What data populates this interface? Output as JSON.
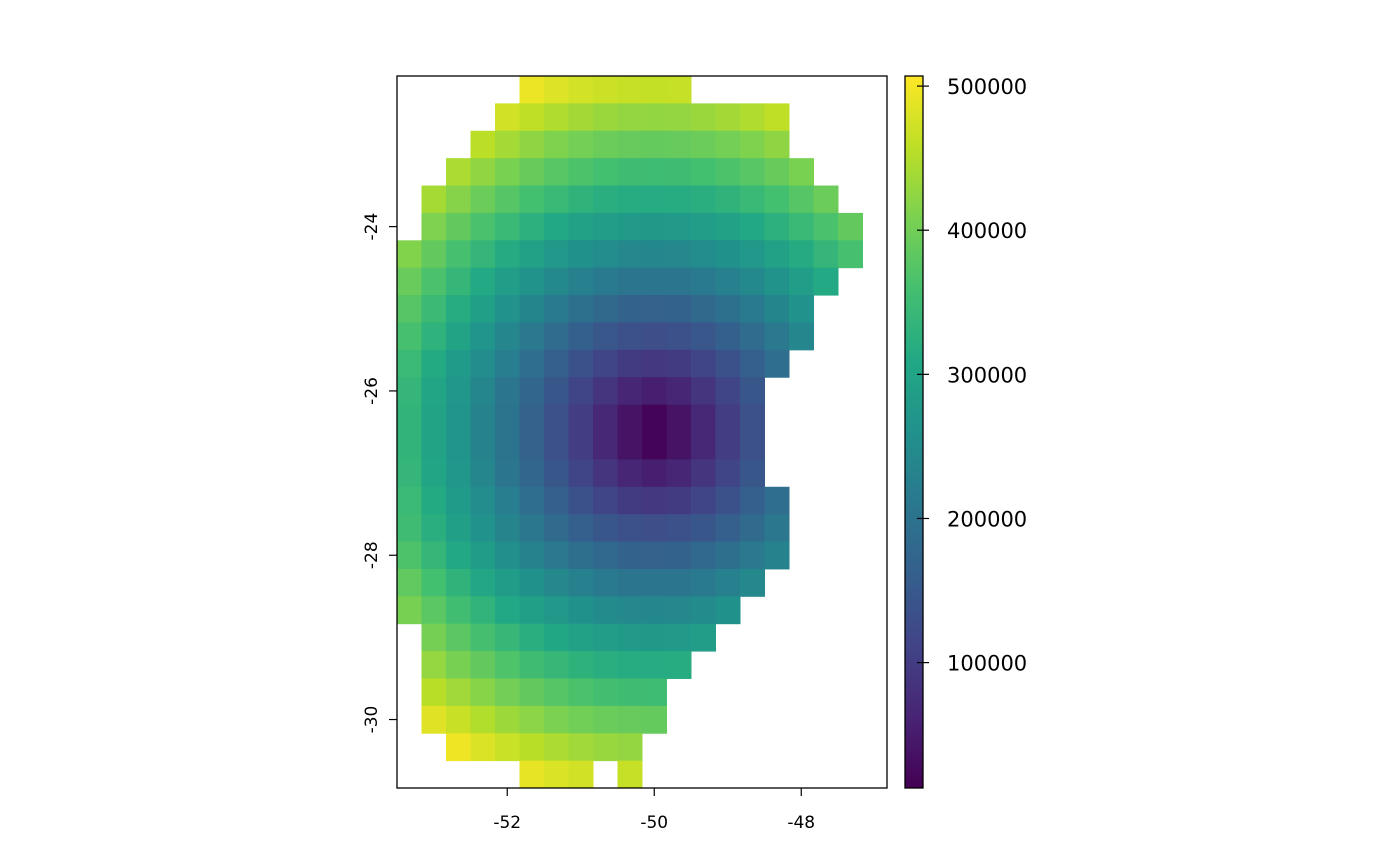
{
  "chart_data": {
    "type": "raster",
    "xlim": [
      -53.5,
      -46.8333
    ],
    "ylim": [
      -30.8333,
      -22.1667
    ],
    "xticks": [
      -52,
      -50,
      -48
    ],
    "yticks": [
      -30,
      -28,
      -26,
      -24
    ],
    "zlim": [
      13000,
      507000
    ],
    "zticks": [
      100000,
      200000,
      300000,
      400000,
      500000
    ],
    "colors": [
      "#440154",
      "#482475",
      "#414487",
      "#355f8d",
      "#2a788e",
      "#21918c",
      "#22a884",
      "#44bf70",
      "#7ad151",
      "#bddf26",
      "#fde725"
    ],
    "z": [
      [
        null,
        null,
        null,
        null,
        null,
        493000,
        482000,
        474000,
        468000,
        464000,
        463000,
        464000,
        null,
        null,
        null,
        null,
        null,
        null,
        null,
        null
      ],
      [
        null,
        null,
        null,
        null,
        472000,
        459000,
        447000,
        438000,
        431000,
        427000,
        426000,
        427000,
        431000,
        438000,
        447000,
        459000,
        null,
        null,
        null,
        null
      ],
      [
        null,
        null,
        null,
        456000,
        439000,
        424000,
        412000,
        402000,
        395000,
        390000,
        389000,
        390000,
        395000,
        402000,
        412000,
        424000,
        null,
        null,
        null,
        null
      ],
      [
        null,
        null,
        445000,
        425000,
        407000,
        391000,
        377000,
        366000,
        358000,
        353000,
        352000,
        353000,
        358000,
        366000,
        377000,
        391000,
        407000,
        null,
        null,
        null
      ],
      [
        null,
        440000,
        417000,
        395000,
        375000,
        358000,
        343000,
        331000,
        322000,
        316000,
        315000,
        316000,
        322000,
        331000,
        343000,
        358000,
        375000,
        395000,
        null,
        null
      ],
      [
        null,
        411000,
        387000,
        364000,
        343000,
        325000,
        309000,
        295000,
        286000,
        280000,
        278000,
        280000,
        286000,
        295000,
        309000,
        325000,
        343000,
        364000,
        387000,
        null
      ],
      [
        414000,
        387000,
        361000,
        337000,
        314000,
        294000,
        276000,
        261000,
        250000,
        243000,
        241000,
        243000,
        250000,
        261000,
        276000,
        294000,
        314000,
        337000,
        361000,
        null
      ],
      [
        393000,
        365000,
        338000,
        311000,
        287000,
        264000,
        244000,
        227000,
        214000,
        206000,
        204000,
        206000,
        214000,
        227000,
        244000,
        264000,
        287000,
        311000,
        null,
        null
      ],
      [
        376000,
        346000,
        317000,
        289000,
        262000,
        237000,
        214000,
        195000,
        180000,
        170000,
        167000,
        170000,
        180000,
        195000,
        214000,
        237000,
        262000,
        null,
        null,
        null
      ],
      [
        361000,
        330000,
        299000,
        269000,
        240000,
        212000,
        187000,
        164000,
        146000,
        134000,
        130000,
        134000,
        146000,
        164000,
        187000,
        212000,
        240000,
        null,
        null,
        null
      ],
      [
        345000,
        313000,
        281000,
        250000,
        220000,
        190000,
        162000,
        136000,
        114000,
        98000,
        93000,
        98000,
        114000,
        136000,
        162000,
        190000,
        null,
        null,
        null,
        null
      ],
      [
        337000,
        304000,
        271000,
        239000,
        207000,
        175000,
        144000,
        114000,
        87000,
        65000,
        56000,
        65000,
        87000,
        114000,
        144000,
        null,
        null,
        null,
        null,
        null
      ],
      [
        333000,
        299000,
        266000,
        233000,
        200000,
        167000,
        134000,
        101000,
        69000,
        38000,
        19000,
        38000,
        69000,
        101000,
        134000,
        null,
        null,
        null,
        null,
        null
      ],
      [
        333000,
        299000,
        266000,
        233000,
        200000,
        167000,
        134000,
        101000,
        69000,
        38000,
        19000,
        38000,
        69000,
        101000,
        134000,
        null,
        null,
        null,
        null,
        null
      ],
      [
        337000,
        304000,
        271000,
        239000,
        207000,
        175000,
        144000,
        114000,
        87000,
        65000,
        56000,
        65000,
        87000,
        114000,
        144000,
        null,
        null,
        null,
        null,
        null
      ],
      [
        345000,
        313000,
        281000,
        250000,
        220000,
        190000,
        162000,
        136000,
        114000,
        98000,
        93000,
        98000,
        114000,
        136000,
        162000,
        190000,
        null,
        null,
        null,
        null
      ],
      [
        351000,
        321000,
        292000,
        263000,
        235000,
        208000,
        184000,
        162000,
        145000,
        134000,
        130000,
        134000,
        145000,
        162000,
        184000,
        208000,
        null,
        null,
        null,
        null
      ],
      [
        367000,
        338000,
        310000,
        283000,
        257000,
        233000,
        212000,
        193000,
        179000,
        170000,
        167000,
        170000,
        179000,
        193000,
        212000,
        233000,
        null,
        null,
        null,
        null
      ],
      [
        385000,
        358000,
        331000,
        306000,
        283000,
        261000,
        242000,
        226000,
        214000,
        206000,
        204000,
        206000,
        214000,
        226000,
        242000,
        null,
        null,
        null,
        null,
        null
      ],
      [
        406000,
        380000,
        355000,
        332000,
        310000,
        291000,
        274000,
        260000,
        249000,
        243000,
        241000,
        243000,
        249000,
        260000,
        null,
        null,
        null,
        null,
        null,
        null
      ],
      [
        null,
        404000,
        381000,
        360000,
        340000,
        322000,
        307000,
        294000,
        285000,
        279000,
        278000,
        279000,
        285000,
        null,
        null,
        null,
        null,
        null,
        null,
        null
      ],
      [
        null,
        428000,
        406000,
        387000,
        369000,
        353000,
        340000,
        329000,
        321000,
        316000,
        315000,
        316000,
        null,
        null,
        null,
        null,
        null,
        null,
        null,
        null
      ],
      [
        null,
        455000,
        436000,
        418000,
        401000,
        387000,
        374000,
        365000,
        357000,
        353000,
        352000,
        null,
        null,
        null,
        null,
        null,
        null,
        null,
        null,
        null
      ],
      [
        null,
        485000,
        466000,
        449000,
        434000,
        421000,
        409000,
        400000,
        394000,
        390000,
        389000,
        null,
        null,
        null,
        null,
        null,
        null,
        null,
        null,
        null
      ],
      [
        null,
        null,
        497000,
        481000,
        467000,
        455000,
        445000,
        436000,
        430000,
        427000,
        null,
        null,
        null,
        null,
        null,
        null,
        null,
        null,
        null,
        null
      ],
      [
        null,
        null,
        null,
        null,
        null,
        490000,
        480000,
        473000,
        null,
        464000,
        null,
        null,
        null,
        null,
        null,
        null,
        null,
        null,
        null,
        null
      ]
    ]
  }
}
